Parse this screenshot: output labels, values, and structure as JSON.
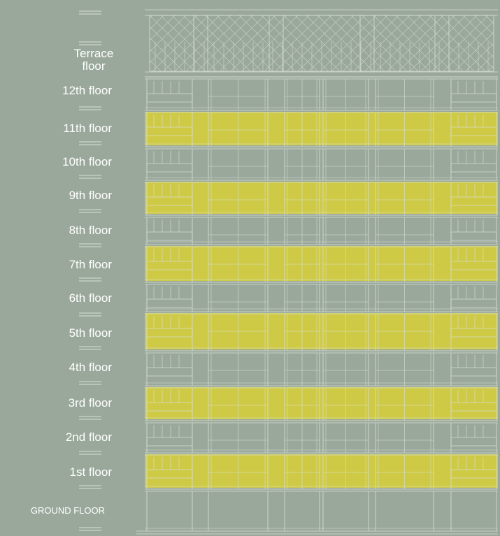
{
  "floors": [
    {
      "label": "Terrace floor"
    },
    {
      "label": "12th floor"
    },
    {
      "label": "11th floor"
    },
    {
      "label": "10th floor"
    },
    {
      "label": "9th floor"
    },
    {
      "label": "8th floor"
    },
    {
      "label": "7th floor"
    },
    {
      "label": "6th floor"
    },
    {
      "label": "5th floor"
    },
    {
      "label": "4th floor"
    },
    {
      "label": "3rd floor"
    },
    {
      "label": "2nd floor"
    },
    {
      "label": "1st floor"
    },
    {
      "label": "GROUND FLOOR"
    }
  ]
}
